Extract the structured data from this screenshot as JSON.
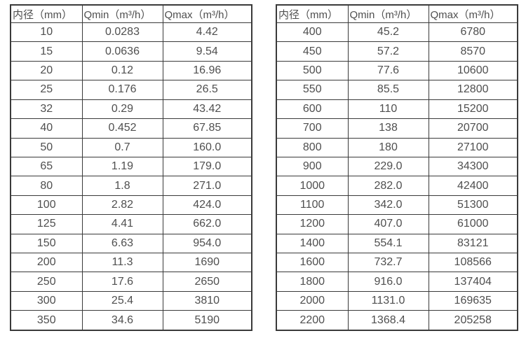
{
  "page": {
    "background": "#ffffff",
    "text_color": "#4f4f4f",
    "border_color": "#3a3a3a"
  },
  "chart_data": [
    {
      "type": "table",
      "name": "flow-table-small-diameters",
      "columns": [
        "内径（mm）",
        "Qmin（m³/h）",
        "Qmax（m³/h）"
      ],
      "rows": [
        [
          "10",
          "0.0283",
          "4.42"
        ],
        [
          "15",
          "0.0636",
          "9.54"
        ],
        [
          "20",
          "0.12",
          "16.96"
        ],
        [
          "25",
          "0.176",
          "26.5"
        ],
        [
          "32",
          "0.29",
          "43.42"
        ],
        [
          "40",
          "0.452",
          "67.85"
        ],
        [
          "50",
          "0.7",
          "160.0"
        ],
        [
          "65",
          "1.19",
          "179.0"
        ],
        [
          "80",
          "1.8",
          "271.0"
        ],
        [
          "100",
          "2.82",
          "424.0"
        ],
        [
          "125",
          "4.41",
          "662.0"
        ],
        [
          "150",
          "6.63",
          "954.0"
        ],
        [
          "200",
          "11.3",
          "1690"
        ],
        [
          "250",
          "17.6",
          "2650"
        ],
        [
          "300",
          "25.4",
          "3810"
        ],
        [
          "350",
          "34.6",
          "5190"
        ]
      ]
    },
    {
      "type": "table",
      "name": "flow-table-large-diameters",
      "columns": [
        "内径（mm）",
        "Qmin（m³/h）",
        "Qmax（m³/h）"
      ],
      "rows": [
        [
          "400",
          "45.2",
          "6780"
        ],
        [
          "450",
          "57.2",
          "8570"
        ],
        [
          "500",
          "77.6",
          "10600"
        ],
        [
          "550",
          "85.5",
          "12800"
        ],
        [
          "600",
          "110",
          "15200"
        ],
        [
          "700",
          "138",
          "20700"
        ],
        [
          "800",
          "180",
          "27100"
        ],
        [
          "900",
          "229.0",
          "34300"
        ],
        [
          "1000",
          "282.0",
          "42400"
        ],
        [
          "1100",
          "342.0",
          "51300"
        ],
        [
          "1200",
          "407.0",
          "61000"
        ],
        [
          "1400",
          "554.1",
          "83121"
        ],
        [
          "1600",
          "732.7",
          "108566"
        ],
        [
          "1800",
          "916.0",
          "137404"
        ],
        [
          "2000",
          "1131.0",
          "169635"
        ],
        [
          "2200",
          "1368.4",
          "205258"
        ]
      ]
    }
  ]
}
